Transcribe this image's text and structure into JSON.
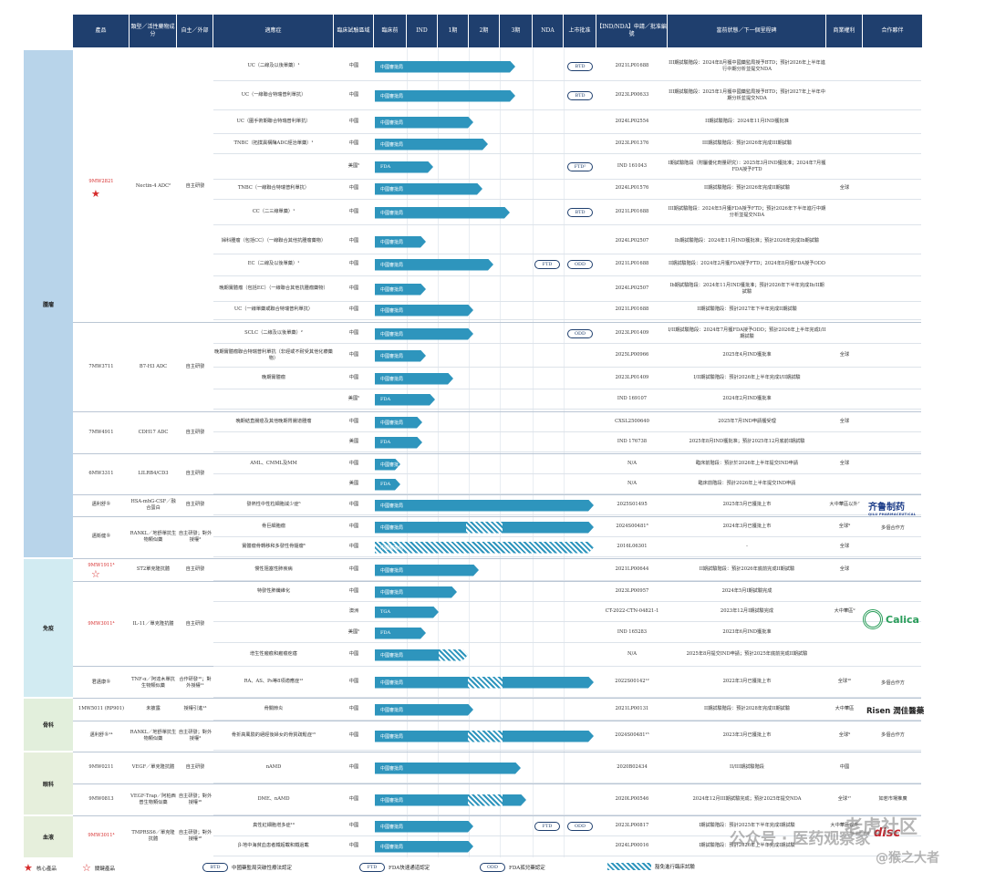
{
  "headers": [
    "產品",
    "類型／活性藥物成分",
    "自主／外部",
    "適應症",
    "臨床試驗區域",
    "臨床前",
    "IND",
    "1期",
    "2期",
    "3期",
    "NDA",
    "上市批准",
    "【IND/NDA】申請／批准編號",
    "當前狀態／下一個里程碑",
    "商業權利",
    "合作夥伴"
  ],
  "areas": [
    "腫瘤",
    "免疫",
    "骨科",
    "眼科",
    "血液"
  ],
  "products": [
    {
      "name": "9MW2821",
      "type": "Nectin-4 ADC²",
      "source": "自主研發"
    },
    {
      "name": "7MW3711",
      "type": "B7-H3 ADC",
      "source": "自主研發"
    },
    {
      "name": "7MW4911",
      "type": "CDH17 ADC",
      "source": "自主研發"
    },
    {
      "name": "6MW3311",
      "type": "LILRB4/CD3",
      "source": "自主研發"
    },
    {
      "name": "邁利舒®",
      "type": "HSA-mhG-CSF／融合蛋白",
      "source": "自主研發"
    },
    {
      "name": "邁衛健®",
      "type": "RANKL／地舒單抗生物類似藥",
      "source": "自主研發；對外授權³"
    },
    {
      "name": "9MW1911⁴",
      "type": "ST2單克隆抗體",
      "source": "自主研發"
    },
    {
      "name": "9MW3011⁴",
      "type": "IL-11／單克隆抗體",
      "source": "自主研發"
    },
    {
      "name": "君邁康®",
      "type": "TNF-α／阿達木單抗生物類似藥",
      "source": "合作研發¹⁰；對外授權¹¹"
    },
    {
      "name": "1MW5011 (RP901)",
      "type": "未披露",
      "source": "授權引進¹³"
    },
    {
      "name": "邁利舒®¹⁴",
      "type": "RANKL／地舒單抗生物類似藥",
      "source": "自主研發；對外授權³"
    },
    {
      "name": "9MW0211",
      "type": "VEGF／單克隆抗體",
      "source": "自主研發"
    },
    {
      "name": "9MW0813",
      "type": "VEGF-Trap／阿柏西普生物類似藥",
      "source": "自主研發；對外授權¹⁶"
    },
    {
      "name": "9MW3011⁴",
      "type": "TMPRSS6／單克隆抗體",
      "source": "自主研發；對外授權¹⁸"
    }
  ],
  "rows": [
    {
      "ind": "UC（二線及以後單藥）¹",
      "region": "中國",
      "status": "中國審批局",
      "code": "2021LP01688",
      "milestone": "III期試驗階段：2024年8月獲中國藥監局授予BTD；預計2026年上半年進行中期分析並提交NDA",
      "badges": [
        "BTD"
      ],
      "rights": ""
    },
    {
      "ind": "UC（一線聯合特瑞普利單抗）",
      "region": "中國",
      "status": "中國審批局",
      "code": "2023LP00633",
      "milestone": "III期試驗階段：2025年1月獲中國藥監局授予BTD；預計2027年上半年中期分析並提交NDA",
      "badges": [
        "BTD"
      ],
      "rights": ""
    },
    {
      "ind": "UC（圍手術期聯合特瑞普利單抗）",
      "region": "中國",
      "status": "中國審批局",
      "code": "2024LP02554",
      "milestone": "II期試驗階段：2024年11月IND獲批准",
      "badges": [],
      "rights": ""
    },
    {
      "ind": "TNBC（拓撲異構酶ADC經治單藥）¹",
      "region": "中國",
      "status": "中國審批局",
      "code": "2023LP01376",
      "milestone": "III期試驗階段：預計2026年完成III期試驗",
      "badges": [],
      "rights": ""
    },
    {
      "ind": "",
      "region": "美國⁵",
      "status": "FDA",
      "code": "IND 161043",
      "milestone": "I期試驗階段（附屬優化劑量研究）：2025年3月IND獲批准；2024年7月獲FDA授予FTD",
      "badges": [
        "FTD⁵"
      ],
      "rights": ""
    },
    {
      "ind": "TNBC（一線聯合特瑞普利單抗）",
      "region": "中國",
      "status": "中國審批局",
      "code": "2024LP01576",
      "milestone": "II期試驗階段：預計2026年完成II期試驗",
      "badges": [],
      "rights": "全球"
    },
    {
      "ind": "CC（二三線單藥）¹",
      "region": "中國",
      "status": "中國審批局",
      "code": "2021LP01688",
      "milestone": "III期試驗階段：2024年5月獲FDA授予FTD；預計2026年下半年進行中期分析並提交NDA",
      "badges": [
        "BTD"
      ],
      "rights": ""
    },
    {
      "ind": "婦科腫瘤（包括CC）（一線聯合其他抗腫瘤藥物）",
      "region": "中國",
      "status": "中國審批局",
      "code": "2024LP02507",
      "milestone": "Ib期試驗階段：2024年11月IND獲批准；預計2026年完成Ib期試驗",
      "badges": [],
      "rights": ""
    },
    {
      "ind": "EC（二線及以後單藥）¹",
      "region": "中國",
      "status": "中國審批局",
      "code": "2021LP01688",
      "milestone": "II期試驗階段：2024年2月獲FDA授予FTD；2024年8月獲FDA授予ODD",
      "badges": [
        "FTD",
        "ODD"
      ],
      "rights": ""
    },
    {
      "ind": "晚期實體瘤（包括EC）（一線聯合其他抗腫瘤藥物）",
      "region": "中國",
      "status": "中國審批局",
      "code": "2024LP02507",
      "milestone": "Ib期試驗階段：2024年11月IND獲批准；預計2026年下半年完成Ib/II期試驗",
      "badges": [],
      "rights": ""
    },
    {
      "ind": "UC（一線單藥或聯合特瑞普利單抗）",
      "region": "中國",
      "status": "中國審批局",
      "code": "2021LP01688",
      "milestone": "II期試驗階段：預計2027年下半年完成II期試驗",
      "badges": [],
      "rights": ""
    },
    {
      "ind": "SCLC（二線及以後單藥）²",
      "region": "中國",
      "status": "中國審批局",
      "code": "2023LP01409",
      "milestone": "I/II期試驗階段：2024年7月獲FDA授予ODD；預計2026年上半年完成I/II期試驗",
      "badges": [
        "ODD"
      ],
      "rights": ""
    },
    {
      "ind": "晚期實體瘤聯合特瑞普利單抗（非經或不耐受其他化療藥物）",
      "region": "中國",
      "status": "中國審批局",
      "code": "2025LP00966",
      "milestone": "2025年4月IND獲批准",
      "badges": [],
      "rights": "全球"
    },
    {
      "ind": "晚期實體瘤",
      "region": "中國",
      "status": "中國審批局",
      "code": "2023LP01409",
      "milestone": "I/II期試驗階段：預計2026年上半年完成I/II期試驗",
      "badges": [],
      "rights": ""
    },
    {
      "ind": "",
      "region": "美國⁵",
      "status": "FDA",
      "code": "IND 169107",
      "milestone": "2024年2月IND獲批准",
      "badges": [],
      "rights": ""
    },
    {
      "ind": "晚期結直腸癌及其他晚期胃腸道腫瘤",
      "region": "中國",
      "status": "中國審批局",
      "code": "CXSL2500640",
      "milestone": "2025年7月IND申請獲受理",
      "badges": [],
      "rights": "全球"
    },
    {
      "ind": "",
      "region": "美國",
      "status": "FDA",
      "code": "IND 176738",
      "milestone": "2025年8月IND獲批准；預計2025年12月底前I期試驗",
      "badges": [],
      "rights": ""
    },
    {
      "ind": "AML、CMML及MM",
      "region": "中國",
      "status": "中國審批",
      "code": "N/A",
      "milestone": "臨床前階段：預計於2026年上半年提交IND申請",
      "badges": [],
      "rights": "全球"
    },
    {
      "ind": "",
      "region": "美國",
      "status": "FDA",
      "code": "N/A",
      "milestone": "臨床前階段：預計2026年上半年提交IND申請",
      "badges": [],
      "rights": ""
    },
    {
      "ind": "發熱性中性粒細胞減少症⁶",
      "region": "中國",
      "status": "中國審批局",
      "code": "2025S01495",
      "milestone": "2025年5月已獲批上市",
      "badges": [],
      "rights": "大中華區以外⁷"
    },
    {
      "ind": "骨巨細胞瘤",
      "region": "中國",
      "status": "中國審批局",
      "code": "2024S00481⁸",
      "milestone": "2024年3月已獲批上市",
      "badges": [],
      "rights": "全球⁹"
    },
    {
      "ind": "實體瘤骨轉移和多發性骨髓瘤⁸",
      "region": "中國",
      "status": "中國審批局",
      "code": "2016L06301",
      "milestone": "-",
      "badges": [],
      "rights": "全球"
    },
    {
      "ind": "慢性阻塞性肺疾病",
      "region": "中國",
      "status": "中國審批局",
      "code": "2021LP00644",
      "milestone": "II期試驗階段：預計2026年底前完成II期試驗",
      "badges": [],
      "rights": "全球"
    },
    {
      "ind": "特發性肺纖維化",
      "region": "中國",
      "status": "中國審批局",
      "code": "2023LP00957",
      "milestone": "2024年5月I期試驗完成",
      "badges": [],
      "rights": ""
    },
    {
      "ind": "",
      "region": "澳洲",
      "status": "TGA",
      "code": "CT-2022-CTN-04821-1",
      "milestone": "2023年12月I期試驗完成",
      "badges": [],
      "rights": "大中華區⁹"
    },
    {
      "ind": "",
      "region": "美國⁵",
      "status": "FDA",
      "code": "IND 165283",
      "milestone": "2023年6月IND獲批准",
      "badges": [],
      "rights": ""
    },
    {
      "ind": "增生性瘢痕和瘢痕疙瘩",
      "region": "中國",
      "status": "中國審批局",
      "code": "N/A",
      "milestone": "2025年8月提交IND申請；預計2025年底前完成II期試驗",
      "badges": [],
      "rights": ""
    },
    {
      "ind": "RA、AS、Ps等8項適應症¹²",
      "region": "中國",
      "status": "中國審批局",
      "code": "2022S00142¹²",
      "milestone": "2022年3月已獲批上市",
      "badges": [],
      "rights": "全球¹⁰"
    },
    {
      "ind": "骨關節炎",
      "region": "中國",
      "status": "中國審批局",
      "code": "2021LP00131",
      "milestone": "II期試驗階段：預計2028年完成II期試驗",
      "badges": [],
      "rights": "大中華區"
    },
    {
      "ind": "骨折高風險的絕經後婦女的骨質疏鬆症¹⁵",
      "region": "中國",
      "status": "中國審批局",
      "code": "2024S00481¹⁵",
      "milestone": "2023年3月已獲批上市",
      "badges": [],
      "rights": "全球⁹"
    },
    {
      "ind": "nAMD",
      "region": "中國",
      "status": "中國審批局",
      "code": "2020B02434",
      "milestone": "II/III期試驗階段",
      "badges": [],
      "rights": "中國"
    },
    {
      "ind": "DME、nAMD",
      "region": "中國",
      "status": "中國審批局",
      "code": "2020LP00546",
      "milestone": "2024年12月III期試驗完成；預計2025年提交NDA",
      "badges": [],
      "rights": "全球¹⁷"
    },
    {
      "ind": "真性紅細胞增多症¹⁹",
      "region": "中國",
      "status": "中國審批局",
      "code": "2023LP00817",
      "milestone": "I期試驗階段：預計2025年下半年完成I期試驗",
      "badges": [
        "FTD",
        "ODD"
      ],
      "rights": "大中華區以外"
    },
    {
      "ind": "β-地中海貧血患者鐵超載和鐵過載",
      "region": "中國",
      "status": "中國審批局",
      "code": "2024LP00016",
      "milestone": "I期試驗階段：預計2026年上半年完成I期試驗",
      "badges": [],
      "rights": ""
    }
  ],
  "partners": [
    "多個合作方",
    "多個合作方",
    "如若市場推廣"
  ],
  "logos": {
    "qilu": "齐鲁制药",
    "qilu_sub": "QILU PHARMACEUTICAL",
    "calico": "Calica",
    "risen": "Risen 潤佳醫藥",
    "disc": "disc"
  },
  "legend": [
    "核心產品",
    "關鍵產品",
    "中國藥監局突破性療法認定",
    "FDA快速通道認定",
    "FDA孤兒藥認定",
    "豁免進行臨床試驗"
  ],
  "legend_badges": [
    "BTD",
    "FTD",
    "ODD"
  ],
  "watermark": [
    "公众号 · 医药观察家",
    "老虎社区",
    "@猴之大者"
  ],
  "colors": {
    "header": "#1f3f6e",
    "bar": "#2e95bd",
    "tumor": "#b8d4ea",
    "immune": "#d2ebf2",
    "bone": "#e2efdc",
    "eye": "#e6efdc",
    "blood": "#e6efdc",
    "core": "#d62b2b"
  }
}
